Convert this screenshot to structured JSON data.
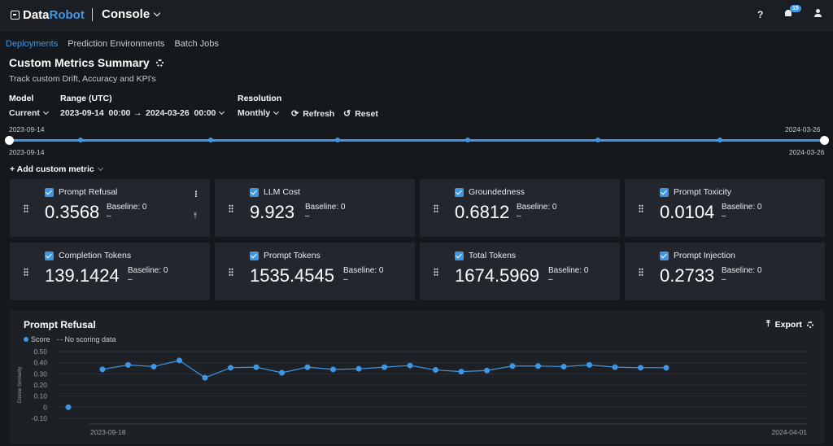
{
  "header": {
    "logo_data": "Data",
    "logo_robot": "Robot",
    "app_name": "Console",
    "help_icon": "?",
    "notification_count": "15"
  },
  "nav": [
    "Deployments",
    "Prediction Environments",
    "Batch Jobs"
  ],
  "page": {
    "title": "Custom Metrics Summary",
    "subtitle": "Track custom Drift, Accuracy and KPI's"
  },
  "controls": {
    "model_label": "Model",
    "model_value": "Current",
    "range_label": "Range (UTC)",
    "range_start": "2023-09-14  00:00",
    "range_arrow": "→",
    "range_end": "2024-03-26  00:00",
    "resolution_label": "Resolution",
    "resolution_value": "Monthly",
    "refresh_label": "Refresh",
    "reset_label": "Reset"
  },
  "slider": {
    "start_top": "2023-09-14",
    "end_top": "2024-03-26",
    "start_bottom": "2023-09-14",
    "end_bottom": "2024-03-26"
  },
  "add_metric_label": "+ Add custom metric",
  "metrics": [
    {
      "name": "Prompt Refusal",
      "value": "0.3568",
      "baseline": "Baseline: 0",
      "dash": "–"
    },
    {
      "name": "LLM Cost",
      "value": "9.923",
      "baseline": "Baseline: 0",
      "dash": "–"
    },
    {
      "name": "Groundedness",
      "value": "0.6812",
      "baseline": "Baseline: 0",
      "dash": "–"
    },
    {
      "name": "Prompt Toxicity",
      "value": "0.0104",
      "baseline": "Baseline: 0",
      "dash": "–"
    },
    {
      "name": "Completion Tokens",
      "value": "139.1424",
      "baseline": "Baseline: 0",
      "dash": "–"
    },
    {
      "name": "Prompt Tokens",
      "value": "1535.4545",
      "baseline": "Baseline: 0",
      "dash": "–"
    },
    {
      "name": "Total Tokens",
      "value": "1674.5969",
      "baseline": "Baseline: 0",
      "dash": "–"
    },
    {
      "name": "Prompt Injection",
      "value": "0.2733",
      "baseline": "Baseline: 0",
      "dash": "–"
    }
  ],
  "chart_panel": {
    "title": "Prompt Refusal",
    "export_label": "Export",
    "legend_score": "Score",
    "legend_no_data": "No scoring data"
  },
  "chart_data": {
    "type": "line",
    "ylabel": "Cosine Similarity",
    "ylim": [
      -0.1,
      0.5
    ],
    "yticks": [
      "0.50",
      "0.40",
      "0.30",
      "0.20",
      "0.10",
      "0",
      "-0.10"
    ],
    "x_start_label": "2023-09-18",
    "x_end_label": "2024-04-01",
    "baseline_point": {
      "value": 0
    },
    "series": [
      {
        "name": "Score",
        "values": [
          0.34,
          0.38,
          0.365,
          0.42,
          0.265,
          0.355,
          0.36,
          0.31,
          0.36,
          0.34,
          0.345,
          0.36,
          0.375,
          0.335,
          0.32,
          0.33,
          0.37,
          0.37,
          0.365,
          0.38,
          0.36,
          0.355,
          0.355
        ]
      }
    ],
    "grid": true
  }
}
